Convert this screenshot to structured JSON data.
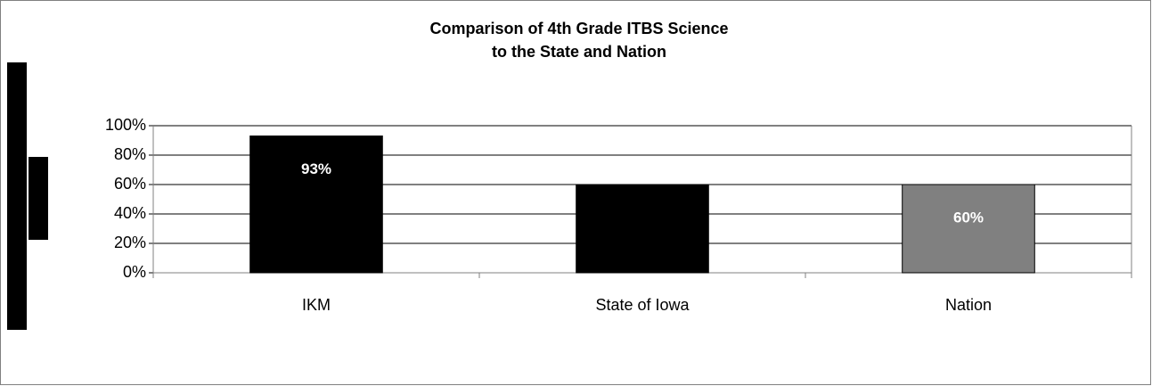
{
  "chart_data": {
    "type": "bar",
    "title_lines": [
      "Comparison of 4th Grade ITBS Science",
      "to the State and Nation"
    ],
    "categories": [
      "IKM",
      "State of Iowa",
      "Nation"
    ],
    "values": [
      93,
      60,
      60
    ],
    "value_labels": [
      "93%",
      null,
      "60%"
    ],
    "colors": [
      "#000000",
      "#000000",
      "#808080"
    ],
    "ylim": [
      0,
      100
    ],
    "yticks": [
      {
        "value": 0,
        "label": "0%"
      },
      {
        "value": 20,
        "label": "20%"
      },
      {
        "value": 40,
        "label": "40%"
      },
      {
        "value": 60,
        "label": "60%"
      },
      {
        "value": 80,
        "label": "80%"
      },
      {
        "value": 100,
        "label": "100%"
      }
    ],
    "grid": true
  }
}
